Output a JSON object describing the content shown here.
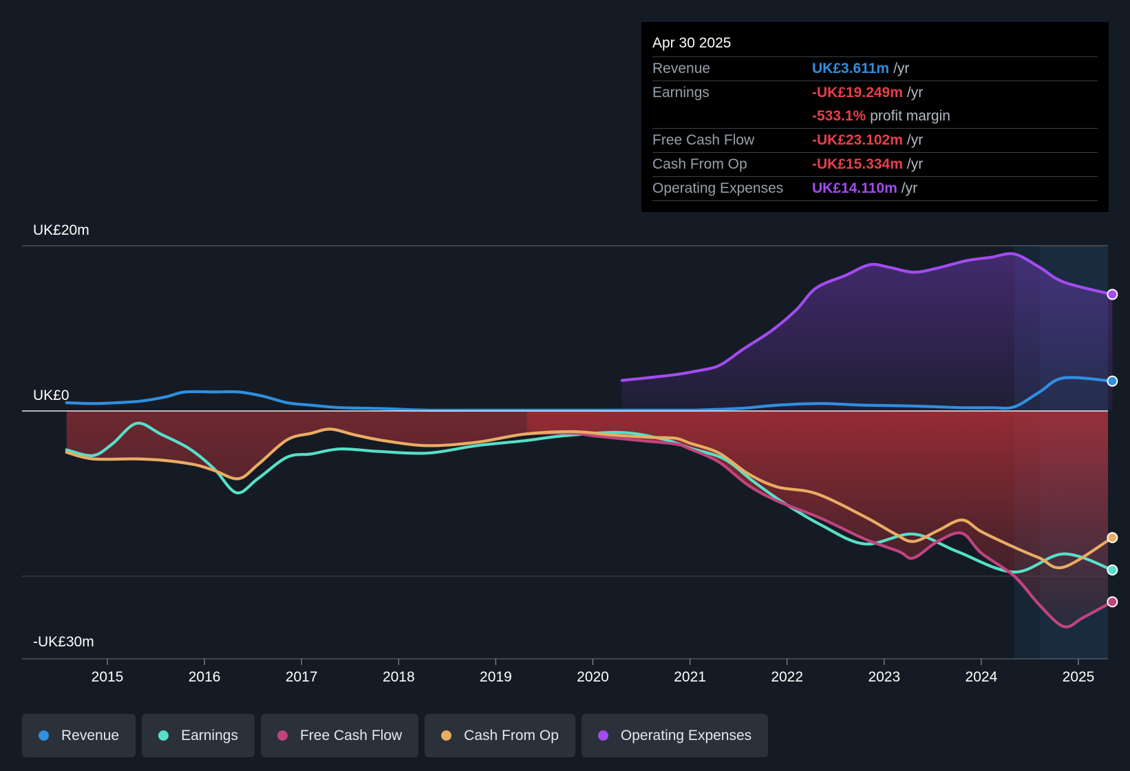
{
  "chart_data": {
    "type": "line",
    "title": "",
    "y_unit": "UK£m",
    "ylim": [
      -30,
      20
    ],
    "y_tick_labels": [
      {
        "value": 20,
        "label": "UK£20m"
      },
      {
        "value": 0,
        "label": "UK£0"
      },
      {
        "value": -30,
        "label": "-UK£30m"
      }
    ],
    "xlim": [
      2014.1,
      2025.35
    ],
    "x_ticks": [
      2015,
      2016,
      2017,
      2018,
      2019,
      2020,
      2021,
      2022,
      2023,
      2024,
      2025
    ],
    "x_tick_labels": [
      "2015",
      "2016",
      "2017",
      "2018",
      "2019",
      "2020",
      "2021",
      "2022",
      "2023",
      "2024",
      "2025"
    ],
    "forecast_start": 2024.34,
    "series": [
      {
        "name": "Revenue",
        "color": "#2f8fe0",
        "points": [
          [
            2014.58,
            1.0
          ],
          [
            2014.85,
            0.9
          ],
          [
            2015.1,
            1.0
          ],
          [
            2015.35,
            1.2
          ],
          [
            2015.6,
            1.7
          ],
          [
            2015.8,
            2.3
          ],
          [
            2016.1,
            2.3
          ],
          [
            2016.35,
            2.3
          ],
          [
            2016.6,
            1.8
          ],
          [
            2016.85,
            1.0
          ],
          [
            2017.1,
            0.7
          ],
          [
            2017.4,
            0.4
          ],
          [
            2017.8,
            0.3
          ],
          [
            2018.3,
            0.1
          ],
          [
            2019.0,
            0.1
          ],
          [
            2020.0,
            0.1
          ],
          [
            2021.0,
            0.1
          ],
          [
            2021.5,
            0.3
          ],
          [
            2021.9,
            0.7
          ],
          [
            2022.35,
            0.9
          ],
          [
            2022.8,
            0.7
          ],
          [
            2023.3,
            0.6
          ],
          [
            2023.8,
            0.4
          ],
          [
            2024.1,
            0.4
          ],
          [
            2024.34,
            0.5
          ],
          [
            2024.6,
            2.3
          ],
          [
            2024.85,
            4.0
          ],
          [
            2025.35,
            3.611
          ]
        ]
      },
      {
        "name": "Earnings",
        "color": "#56e0c8",
        "points": [
          [
            2014.58,
            -4.7
          ],
          [
            2014.85,
            -5.4
          ],
          [
            2015.05,
            -4.0
          ],
          [
            2015.3,
            -1.5
          ],
          [
            2015.55,
            -2.8
          ],
          [
            2015.85,
            -4.6
          ],
          [
            2016.1,
            -7.0
          ],
          [
            2016.33,
            -9.9
          ],
          [
            2016.55,
            -8.2
          ],
          [
            2016.85,
            -5.6
          ],
          [
            2017.1,
            -5.2
          ],
          [
            2017.4,
            -4.6
          ],
          [
            2017.8,
            -4.9
          ],
          [
            2018.3,
            -5.1
          ],
          [
            2018.8,
            -4.2
          ],
          [
            2019.3,
            -3.6
          ],
          [
            2019.7,
            -3.0
          ],
          [
            2020.3,
            -2.6
          ],
          [
            2020.75,
            -3.5
          ],
          [
            2021.0,
            -4.5
          ],
          [
            2021.35,
            -5.8
          ],
          [
            2021.65,
            -8.5
          ],
          [
            2021.95,
            -11.0
          ],
          [
            2022.35,
            -13.8
          ],
          [
            2022.8,
            -16.1
          ],
          [
            2023.3,
            -14.9
          ],
          [
            2023.75,
            -17.0
          ],
          [
            2024.34,
            -19.5
          ],
          [
            2024.85,
            -17.3
          ],
          [
            2025.35,
            -19.249
          ]
        ]
      },
      {
        "name": "Free Cash Flow",
        "color": "#c0447e",
        "points": [
          [
            2014.58,
            -5.0
          ],
          [
            2014.85,
            -5.8
          ],
          [
            2015.3,
            -5.8
          ],
          [
            2015.6,
            -6.0
          ],
          [
            2015.9,
            -6.5
          ],
          [
            2016.1,
            -7.2
          ],
          [
            2016.35,
            -8.2
          ],
          [
            2016.55,
            -6.5
          ],
          [
            2016.85,
            -3.5
          ],
          [
            2017.1,
            -2.7
          ],
          [
            2017.3,
            -2.2
          ],
          [
            2017.55,
            -2.9
          ],
          [
            2017.85,
            -3.6
          ],
          [
            2018.3,
            -4.2
          ],
          [
            2018.8,
            -3.8
          ],
          [
            2019.3,
            -2.8
          ],
          [
            2019.8,
            -2.7
          ],
          [
            2020.0,
            -3.0
          ],
          [
            2020.5,
            -3.6
          ],
          [
            2020.85,
            -4.0
          ],
          [
            2021.0,
            -4.6
          ],
          [
            2021.3,
            -6.2
          ],
          [
            2021.6,
            -9.0
          ],
          [
            2021.9,
            -10.9
          ],
          [
            2022.35,
            -13.0
          ],
          [
            2022.8,
            -15.5
          ],
          [
            2023.15,
            -17.0
          ],
          [
            2023.3,
            -17.8
          ],
          [
            2023.55,
            -15.8
          ],
          [
            2023.8,
            -14.8
          ],
          [
            2024.0,
            -17.2
          ],
          [
            2024.34,
            -20.0
          ],
          [
            2024.6,
            -23.5
          ],
          [
            2024.85,
            -26.1
          ],
          [
            2025.05,
            -25.0
          ],
          [
            2025.35,
            -23.102
          ]
        ]
      },
      {
        "name": "Cash From Op",
        "color": "#e8ad62",
        "points": [
          [
            2014.58,
            -5.0
          ],
          [
            2014.85,
            -5.8
          ],
          [
            2015.3,
            -5.8
          ],
          [
            2015.6,
            -6.0
          ],
          [
            2015.9,
            -6.5
          ],
          [
            2016.1,
            -7.2
          ],
          [
            2016.35,
            -8.2
          ],
          [
            2016.55,
            -6.5
          ],
          [
            2016.85,
            -3.5
          ],
          [
            2017.1,
            -2.7
          ],
          [
            2017.3,
            -2.2
          ],
          [
            2017.55,
            -2.9
          ],
          [
            2017.85,
            -3.6
          ],
          [
            2018.3,
            -4.2
          ],
          [
            2018.8,
            -3.8
          ],
          [
            2019.3,
            -2.8
          ],
          [
            2019.8,
            -2.5
          ],
          [
            2020.2,
            -2.9
          ],
          [
            2020.6,
            -3.2
          ],
          [
            2020.85,
            -3.3
          ],
          [
            2021.0,
            -3.9
          ],
          [
            2021.3,
            -5.1
          ],
          [
            2021.6,
            -7.6
          ],
          [
            2021.9,
            -9.2
          ],
          [
            2022.3,
            -10.0
          ],
          [
            2022.8,
            -12.8
          ],
          [
            2023.1,
            -14.8
          ],
          [
            2023.3,
            -15.8
          ],
          [
            2023.55,
            -14.5
          ],
          [
            2023.8,
            -13.2
          ],
          [
            2024.0,
            -14.6
          ],
          [
            2024.34,
            -16.5
          ],
          [
            2024.6,
            -17.8
          ],
          [
            2024.85,
            -18.9
          ],
          [
            2025.35,
            -15.334
          ]
        ]
      },
      {
        "name": "Operating Expenses",
        "color": "#a24cf0",
        "points": [
          [
            2020.3,
            3.7
          ],
          [
            2020.55,
            4.0
          ],
          [
            2020.85,
            4.4
          ],
          [
            2021.05,
            4.8
          ],
          [
            2021.3,
            5.5
          ],
          [
            2021.55,
            7.5
          ],
          [
            2021.85,
            9.8
          ],
          [
            2022.1,
            12.3
          ],
          [
            2022.3,
            14.9
          ],
          [
            2022.6,
            16.4
          ],
          [
            2022.85,
            17.7
          ],
          [
            2023.05,
            17.4
          ],
          [
            2023.3,
            16.8
          ],
          [
            2023.55,
            17.3
          ],
          [
            2023.85,
            18.2
          ],
          [
            2024.1,
            18.6
          ],
          [
            2024.34,
            19.0
          ],
          [
            2024.6,
            17.4
          ],
          [
            2024.85,
            15.6
          ],
          [
            2025.35,
            14.11
          ]
        ]
      }
    ],
    "tooltip": {
      "date": "Apr 30 2025",
      "rows": [
        {
          "label": "Revenue",
          "value": "UK£3.611m",
          "unit": "/yr",
          "color": "#2f8fe0"
        },
        {
          "label": "Earnings",
          "value": "-UK£19.249m",
          "unit": "/yr",
          "color": "#e8404a"
        },
        {
          "label": "",
          "value": "-533.1%",
          "unit": "profit margin",
          "color": "#e8404a"
        },
        {
          "label": "Free Cash Flow",
          "value": "-UK£23.102m",
          "unit": "/yr",
          "color": "#e8404a"
        },
        {
          "label": "Cash From Op",
          "value": "-UK£15.334m",
          "unit": "/yr",
          "color": "#e8404a"
        },
        {
          "label": "Operating Expenses",
          "value": "UK£14.110m",
          "unit": "/yr",
          "color": "#a24cf0"
        }
      ]
    },
    "legend": [
      "Revenue",
      "Earnings",
      "Free Cash Flow",
      "Cash From Op",
      "Operating Expenses"
    ]
  }
}
